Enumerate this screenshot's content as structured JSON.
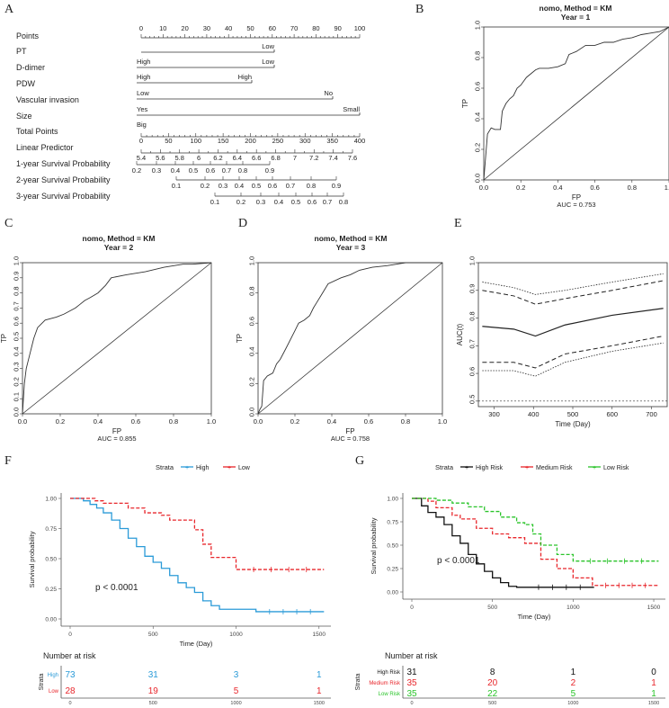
{
  "panels": {
    "A": {
      "letter": "A",
      "rows": [
        {
          "name": "Points",
          "ticks": [
            "0",
            "10",
            "20",
            "30",
            "40",
            "50",
            "60",
            "70",
            "80",
            "90",
            "100"
          ]
        },
        {
          "name": "PT",
          "labels": [
            "Low"
          ]
        },
        {
          "name": "D-dimer",
          "labels": [
            "High",
            "Low"
          ]
        },
        {
          "name": "PDW",
          "labels": [
            "High",
            "High"
          ]
        },
        {
          "name": "Vascular invasion",
          "labels": [
            "Low",
            "No"
          ]
        },
        {
          "name": "Size",
          "labels": [
            "Yes",
            "Small"
          ]
        },
        {
          "name": "Total Points",
          "labels": [
            "Big"
          ],
          "ticks": [
            "0",
            "50",
            "100",
            "150",
            "200",
            "250",
            "300",
            "350",
            "400"
          ]
        },
        {
          "name": "Linear Predictor",
          "ticks": [
            "5.4",
            "5.6",
            "5.8",
            "6",
            "6.2",
            "6.4",
            "6.6",
            "6.8",
            "7",
            "7.2",
            "7.4",
            "7.6"
          ]
        },
        {
          "name": "1-year Survival Probability",
          "ticks": [
            "0.2",
            "0.3",
            "0.4",
            "0.5",
            "0.6",
            "0.7",
            "0.8",
            "0.9"
          ]
        },
        {
          "name": "2-year Survival Probability",
          "ticks": [
            "0.1",
            "0.2",
            "0.3",
            "0.4",
            "0.5",
            "0.6",
            "0.7",
            "0.8",
            "0.9"
          ]
        },
        {
          "name": "3-year Survival Probability",
          "ticks": [
            "0.1",
            "0.2",
            "0.3",
            "0.4",
            "0.5",
            "0.6",
            "0.7",
            "0.8"
          ]
        }
      ]
    },
    "B": {
      "letter": "B"
    },
    "C": {
      "letter": "C"
    },
    "D": {
      "letter": "D"
    },
    "E": {
      "letter": "E"
    },
    "F": {
      "letter": "F"
    },
    "G": {
      "letter": "G"
    }
  },
  "chart_data": [
    {
      "id": "B",
      "type": "line",
      "title": "nomo, Method = KM",
      "subtitle": "Year = 1",
      "xlabel": "FP",
      "ylabel": "TP",
      "auc_label": "AUC = 0.753",
      "xlim": [
        0,
        1
      ],
      "ylim": [
        0,
        1
      ],
      "xticks": [
        "0.0",
        "0.2",
        "0.4",
        "0.6",
        "0.8",
        "1.0"
      ],
      "yticks": [
        "0.0",
        "0.2",
        "0.4",
        "0.6",
        "0.8",
        "1.0"
      ],
      "series": [
        {
          "name": "ROC",
          "x": [
            0,
            0.01,
            0.02,
            0.04,
            0.06,
            0.09,
            0.1,
            0.12,
            0.14,
            0.16,
            0.18,
            0.2,
            0.23,
            0.26,
            0.28,
            0.3,
            0.35,
            0.4,
            0.44,
            0.46,
            0.5,
            0.55,
            0.6,
            0.65,
            0.7,
            0.75,
            0.8,
            0.85,
            0.9,
            0.95,
            1.0
          ],
          "y": [
            0,
            0.15,
            0.3,
            0.34,
            0.33,
            0.33,
            0.45,
            0.5,
            0.53,
            0.55,
            0.6,
            0.62,
            0.67,
            0.7,
            0.72,
            0.73,
            0.73,
            0.74,
            0.76,
            0.82,
            0.84,
            0.88,
            0.88,
            0.9,
            0.9,
            0.92,
            0.93,
            0.95,
            0.96,
            0.97,
            1.0
          ]
        }
      ]
    },
    {
      "id": "C",
      "type": "line",
      "title": "nomo, Method = KM",
      "subtitle": "Year = 2",
      "xlabel": "FP",
      "ylabel": "TP",
      "auc_label": "AUC = 0.855",
      "xlim": [
        0,
        1
      ],
      "ylim": [
        0,
        1
      ],
      "xticks": [
        "0.0",
        "0.2",
        "0.4",
        "0.6",
        "0.8",
        "1.0"
      ],
      "yticks": [
        "0.0",
        "0.1",
        "0.2",
        "0.3",
        "0.4",
        "0.5",
        "0.6",
        "0.7",
        "0.8",
        "0.9",
        "1.0"
      ],
      "series": [
        {
          "name": "ROC",
          "x": [
            0,
            0.005,
            0.01,
            0.02,
            0.03,
            0.04,
            0.05,
            0.06,
            0.08,
            0.12,
            0.18,
            0.22,
            0.25,
            0.28,
            0.3,
            0.33,
            0.36,
            0.4,
            0.44,
            0.47,
            0.55,
            0.65,
            0.75,
            0.85,
            0.9,
            1.0
          ],
          "y": [
            0,
            0.1,
            0.2,
            0.3,
            0.35,
            0.4,
            0.45,
            0.5,
            0.57,
            0.62,
            0.64,
            0.66,
            0.68,
            0.7,
            0.72,
            0.75,
            0.77,
            0.8,
            0.85,
            0.9,
            0.92,
            0.94,
            0.97,
            0.99,
            0.99,
            1.0
          ]
        }
      ]
    },
    {
      "id": "D",
      "type": "line",
      "title": "nomo, Method = KM",
      "subtitle": "Year = 3",
      "xlabel": "FP",
      "ylabel": "TP",
      "auc_label": "AUC = 0.758",
      "xlim": [
        0,
        1
      ],
      "ylim": [
        0,
        1
      ],
      "xticks": [
        "0.0",
        "0.2",
        "0.4",
        "0.6",
        "0.8",
        "1.0"
      ],
      "yticks": [
        "0.0",
        "0.2",
        "0.4",
        "0.6",
        "0.8",
        "1.0"
      ],
      "series": [
        {
          "name": "ROC",
          "x": [
            0,
            0.01,
            0.02,
            0.03,
            0.05,
            0.08,
            0.1,
            0.12,
            0.15,
            0.2,
            0.22,
            0.25,
            0.28,
            0.3,
            0.32,
            0.34,
            0.36,
            0.38,
            0.45,
            0.5,
            0.55,
            0.62,
            0.7,
            0.75,
            0.8,
            0.9,
            1.0
          ],
          "y": [
            0,
            0.03,
            0.05,
            0.22,
            0.25,
            0.27,
            0.33,
            0.36,
            0.43,
            0.55,
            0.6,
            0.62,
            0.65,
            0.7,
            0.74,
            0.78,
            0.82,
            0.86,
            0.9,
            0.92,
            0.95,
            0.97,
            0.98,
            0.99,
            1.0,
            1.0,
            1.0
          ]
        }
      ]
    },
    {
      "id": "E",
      "type": "line",
      "title": "",
      "xlabel": "Time (Day)",
      "ylabel": "AUC(t)",
      "xlim": [
        260,
        740
      ],
      "ylim": [
        0.48,
        1.0
      ],
      "xticks": [
        "300",
        "400",
        "500",
        "600",
        "700"
      ],
      "yticks": [
        "0.5",
        "0.6",
        "0.7",
        "0.8",
        "0.9",
        "1.0"
      ],
      "reference": 0.5,
      "x": [
        270,
        350,
        405,
        480,
        600,
        730
      ],
      "series": [
        {
          "name": "AUC",
          "values": [
            0.77,
            0.76,
            0.735,
            0.775,
            0.81,
            0.835
          ]
        },
        {
          "name": "Upper CI",
          "values": [
            0.9,
            0.88,
            0.85,
            0.87,
            0.9,
            0.935
          ]
        },
        {
          "name": "Lower CI",
          "values": [
            0.64,
            0.64,
            0.62,
            0.67,
            0.7,
            0.735
          ]
        },
        {
          "name": "Upper band",
          "values": [
            0.93,
            0.91,
            0.885,
            0.9,
            0.93,
            0.96
          ]
        },
        {
          "name": "Lower band",
          "values": [
            0.61,
            0.61,
            0.59,
            0.64,
            0.68,
            0.71
          ]
        }
      ]
    },
    {
      "id": "F",
      "type": "line",
      "legend_title": "Strata",
      "legend": [
        "High",
        "Low"
      ],
      "xlabel": "Time (Day)",
      "ylabel": "Survival probability",
      "pvalue": "p < 0.0001",
      "xlim": [
        0,
        1550
      ],
      "ylim": [
        0,
        1
      ],
      "xticks": [
        "0",
        "500",
        "1000",
        "1500"
      ],
      "yticks": [
        "0.00",
        "0.25",
        "0.50",
        "0.75",
        "1.00"
      ],
      "series": [
        {
          "name": "High",
          "color": "#2b9bd8",
          "x": [
            0,
            80,
            120,
            160,
            200,
            250,
            300,
            350,
            400,
            450,
            500,
            550,
            600,
            650,
            700,
            750,
            800,
            850,
            900,
            1000,
            1100,
            1120,
            1530
          ],
          "y": [
            1,
            0.98,
            0.95,
            0.92,
            0.88,
            0.82,
            0.75,
            0.67,
            0.6,
            0.52,
            0.47,
            0.42,
            0.36,
            0.3,
            0.26,
            0.22,
            0.15,
            0.11,
            0.08,
            0.08,
            0.08,
            0.06,
            0.06
          ]
        },
        {
          "name": "Low",
          "color": "#e8262b",
          "x": [
            0,
            150,
            200,
            350,
            450,
            550,
            600,
            700,
            750,
            800,
            850,
            1000,
            1530
          ],
          "y": [
            1,
            0.98,
            0.96,
            0.92,
            0.88,
            0.86,
            0.82,
            0.82,
            0.74,
            0.62,
            0.51,
            0.41,
            0.41
          ]
        }
      ],
      "risk_table": {
        "title": "Number at risk",
        "strata_label": "Strata",
        "times": [
          "0",
          "500",
          "1000",
          "1500"
        ],
        "rows": [
          {
            "name": "High",
            "color": "#2b9bd8",
            "values": [
              "73",
              "31",
              "3",
              "1"
            ]
          },
          {
            "name": "Low",
            "color": "#e8262b",
            "values": [
              "28",
              "19",
              "5",
              "1"
            ]
          }
        ]
      }
    },
    {
      "id": "G",
      "type": "line",
      "legend_title": "Strata",
      "legend": [
        "High Risk",
        "Medium Risk",
        "Low Risk"
      ],
      "xlabel": "Time (Day)",
      "ylabel": "Survival probability",
      "pvalue": "p < 0.0001",
      "xlim": [
        0,
        1550
      ],
      "ylim": [
        0,
        1
      ],
      "xticks": [
        "0",
        "500",
        "1000",
        "1500"
      ],
      "yticks": [
        "0.00",
        "0.25",
        "0.50",
        "0.75",
        "1.00"
      ],
      "series": [
        {
          "name": "High Risk",
          "color": "#111111",
          "x": [
            0,
            60,
            100,
            150,
            200,
            250,
            300,
            350,
            400,
            450,
            500,
            550,
            600,
            650,
            700,
            1130
          ],
          "y": [
            1,
            0.92,
            0.85,
            0.8,
            0.72,
            0.6,
            0.52,
            0.4,
            0.3,
            0.22,
            0.15,
            0.1,
            0.06,
            0.05,
            0.05,
            0.05
          ]
        },
        {
          "name": "Medium Risk",
          "color": "#e8262b",
          "x": [
            0,
            100,
            150,
            250,
            300,
            400,
            500,
            600,
            700,
            800,
            900,
            1000,
            1120,
            1530
          ],
          "y": [
            1,
            0.97,
            0.9,
            0.82,
            0.78,
            0.68,
            0.62,
            0.58,
            0.52,
            0.35,
            0.25,
            0.15,
            0.07,
            0.07
          ]
        },
        {
          "name": "Low Risk",
          "color": "#2ac42a",
          "x": [
            0,
            150,
            250,
            350,
            450,
            550,
            650,
            700,
            750,
            800,
            900,
            1000,
            1530
          ],
          "y": [
            1,
            0.98,
            0.95,
            0.91,
            0.86,
            0.8,
            0.74,
            0.72,
            0.62,
            0.5,
            0.4,
            0.33,
            0.33
          ]
        }
      ],
      "risk_table": {
        "title": "Number at risk",
        "strata_label": "Strata",
        "times": [
          "0",
          "500",
          "1000",
          "1500"
        ],
        "rows": [
          {
            "name": "High Risk",
            "color": "#111111",
            "values": [
              "31",
              "8",
              "1",
              "0"
            ]
          },
          {
            "name": "Medium Risk",
            "color": "#e8262b",
            "values": [
              "35",
              "20",
              "2",
              "1"
            ]
          },
          {
            "name": "Low Risk",
            "color": "#2ac42a",
            "values": [
              "35",
              "22",
              "5",
              "1"
            ]
          }
        ]
      }
    }
  ]
}
